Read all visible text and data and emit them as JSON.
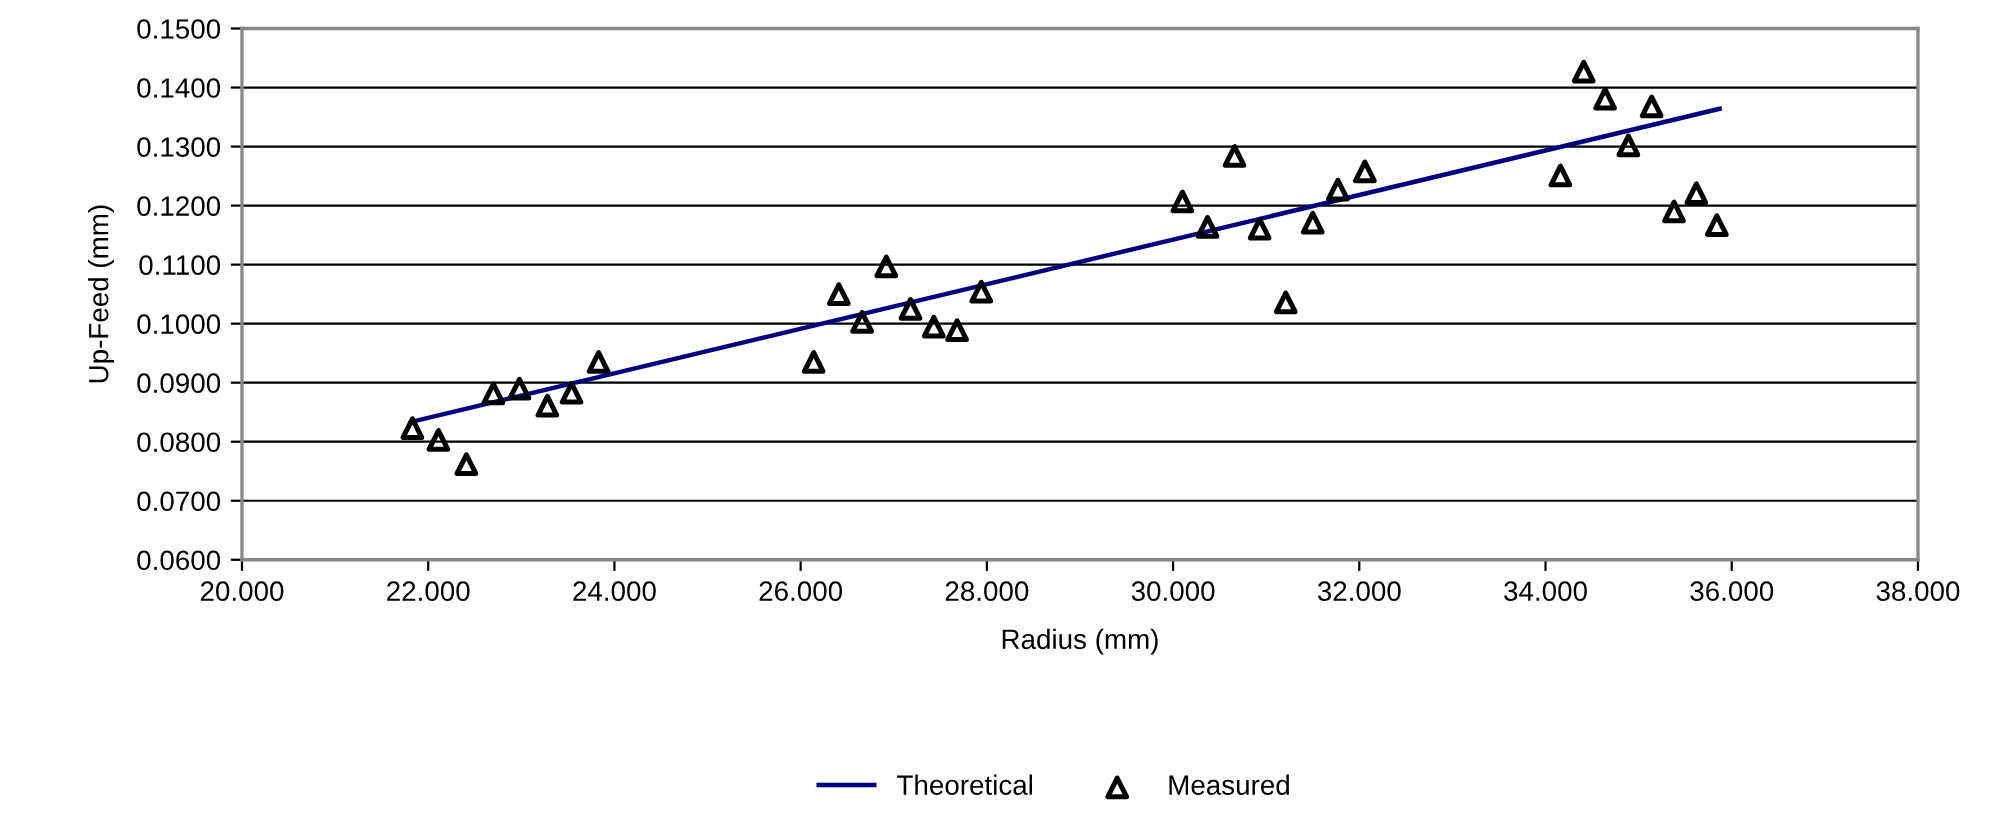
{
  "chart_data": {
    "type": "scatter",
    "xlabel": "Radius (mm)",
    "ylabel": "Up-Feed (mm)",
    "xlim": [
      20,
      38
    ],
    "xticks": [
      {
        "value": 20,
        "label": "20.000"
      },
      {
        "value": 22,
        "label": "22.000"
      },
      {
        "value": 24,
        "label": "24.000"
      },
      {
        "value": 26,
        "label": "26.000"
      },
      {
        "value": 28,
        "label": "28.000"
      },
      {
        "value": 30,
        "label": "30.000"
      },
      {
        "value": 32,
        "label": "32.000"
      },
      {
        "value": 34,
        "label": "34.000"
      },
      {
        "value": 36,
        "label": "36.000"
      },
      {
        "value": 38,
        "label": "38.000"
      }
    ],
    "ylim": [
      0.06,
      0.15
    ],
    "yticks": [
      {
        "value": 0.06,
        "label": "0.0600"
      },
      {
        "value": 0.07,
        "label": "0.0700"
      },
      {
        "value": 0.08,
        "label": "0.0800"
      },
      {
        "value": 0.09,
        "label": "0.0900"
      },
      {
        "value": 0.1,
        "label": "0.1000"
      },
      {
        "value": 0.11,
        "label": "0.1100"
      },
      {
        "value": 0.12,
        "label": "0.1200"
      },
      {
        "value": 0.13,
        "label": "0.1300"
      },
      {
        "value": 0.14,
        "label": "0.1400"
      },
      {
        "value": 0.15,
        "label": "0.1500"
      }
    ],
    "grid": "y",
    "legend": "bottom",
    "series": [
      {
        "name": "Theoretical",
        "type": "line",
        "color": "#000080",
        "marker": "none",
        "line_style": "solid",
        "x": [
          21.83,
          35.87
        ],
        "values": [
          0.0834,
          0.1364
        ]
      },
      {
        "name": "Measured",
        "color": "#000000",
        "marker": "triangle",
        "x": [
          21.83,
          22.11,
          22.41,
          22.7,
          22.98,
          23.28,
          23.54,
          23.83,
          26.14,
          26.41,
          26.66,
          26.92,
          27.18,
          27.43,
          27.68,
          27.94,
          30.1,
          30.37,
          30.66,
          30.93,
          31.21,
          31.5,
          31.77,
          32.06,
          34.16,
          34.41,
          34.64,
          34.89,
          35.14,
          35.38,
          35.62,
          35.84
        ],
        "values": [
          0.0823,
          0.0803,
          0.0762,
          0.0882,
          0.089,
          0.0861,
          0.0883,
          0.0935,
          0.0935,
          0.105,
          0.1003,
          0.1097,
          0.1025,
          0.0995,
          0.0989,
          0.1054,
          0.1207,
          0.1164,
          0.1284,
          0.1161,
          0.1036,
          0.1171,
          0.1227,
          0.1258,
          0.1251,
          0.1427,
          0.1381,
          0.1302,
          0.1368,
          0.119,
          0.1221,
          0.1167
        ]
      }
    ]
  }
}
